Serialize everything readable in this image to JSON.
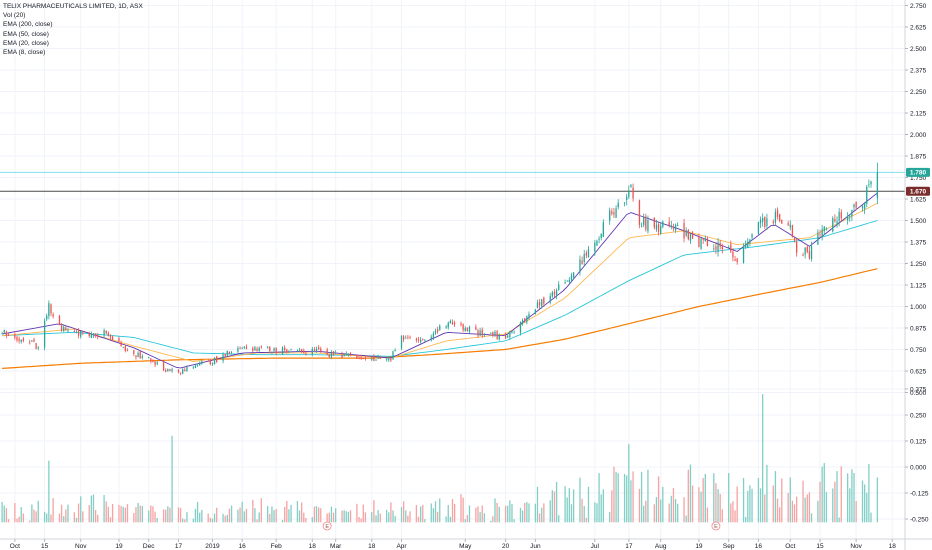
{
  "legend": {
    "title": "TELIX PHARMACEUTICALS LIMITED, 1D, ASX",
    "indicators": [
      "Vol (20)",
      "EMA (200, close)",
      "EMA (50, close)",
      "EMA (20, close)",
      "EMA (8, close)"
    ]
  },
  "colors": {
    "up": "#26a69a",
    "down": "#ef5350",
    "vol_up": "#83cfc6",
    "vol_down": "#f5a3a3",
    "ema200": "#f57c00",
    "ema50": "#26c6da",
    "ema20": "#ffb74d",
    "ema8": "#5e35b1",
    "hline_resistance": "#4a4a4a",
    "hline_last": "#80deea",
    "badge_last": "#26a69a",
    "badge_level": "#7b2d2d"
  },
  "chart_data": {
    "type": "candlestick",
    "symbol": "TELIX PHARMACEUTICALS LIMITED",
    "interval": "1D",
    "exchange": "ASX",
    "price_axis": {
      "ylim": [
        0.5,
        2.75
      ],
      "ticks": [
        "2.750",
        "2.625",
        "2.500",
        "2.375",
        "2.250",
        "2.125",
        "2.000",
        "1.875",
        "1.750",
        "1.625",
        "1.500",
        "1.375",
        "1.250",
        "1.125",
        "1.000",
        "0.875",
        "0.750",
        "0.625",
        "0.500"
      ]
    },
    "volume_axis": {
      "ticks": [
        "0.375",
        "0.250",
        "0.125",
        "0.000",
        "-0.125",
        "-0.250"
      ]
    },
    "price_labels": {
      "last": "1.780",
      "level": "1.670"
    },
    "horizontal_lines": [
      1.67,
      1.78
    ],
    "x_ticks": [
      {
        "label": "Oct",
        "date": "2018-10-01"
      },
      {
        "label": "15",
        "date": "2018-10-15"
      },
      {
        "label": "Nov",
        "date": "2018-11-01"
      },
      {
        "label": "19",
        "date": "2018-11-19"
      },
      {
        "label": "Dec",
        "date": "2018-12-03"
      },
      {
        "label": "17",
        "date": "2018-12-17"
      },
      {
        "label": "2019",
        "date": "2019-01-02"
      },
      {
        "label": "16",
        "date": "2019-01-16"
      },
      {
        "label": "Feb",
        "date": "2019-02-01"
      },
      {
        "label": "18",
        "date": "2019-02-18"
      },
      {
        "label": "Mar",
        "date": "2019-03-01"
      },
      {
        "label": "18",
        "date": "2019-03-18"
      },
      {
        "label": "Apr",
        "date": "2019-04-01"
      },
      {
        "label": "May",
        "date": "2019-05-01"
      },
      {
        "label": "20",
        "date": "2019-05-20"
      },
      {
        "label": "Jun",
        "date": "2019-06-03"
      },
      {
        "label": "Jul",
        "date": "2019-07-01"
      },
      {
        "label": "17",
        "date": "2019-07-17"
      },
      {
        "label": "Aug",
        "date": "2019-08-01"
      },
      {
        "label": "19",
        "date": "2019-08-19"
      },
      {
        "label": "Sep",
        "date": "2019-09-02"
      },
      {
        "label": "16",
        "date": "2019-09-16"
      },
      {
        "label": "Oct",
        "date": "2019-10-01"
      },
      {
        "label": "15",
        "date": "2019-10-15"
      },
      {
        "label": "Nov",
        "date": "2019-11-01"
      },
      {
        "label": "18",
        "date": "2019-11-18"
      }
    ],
    "event_markers": [
      {
        "label": "E",
        "date": "2019-02-25"
      },
      {
        "label": "E",
        "date": "2019-08-27"
      }
    ],
    "price_path": [
      [
        "2018-09-25",
        0.85
      ],
      [
        "2018-10-01",
        0.82
      ],
      [
        "2018-10-08",
        0.8
      ],
      [
        "2018-10-12",
        0.76
      ],
      [
        "2018-10-17",
        1.0
      ],
      [
        "2018-10-22",
        0.88
      ],
      [
        "2018-10-29",
        0.85
      ],
      [
        "2018-11-05",
        0.84
      ],
      [
        "2018-11-12",
        0.85
      ],
      [
        "2018-11-19",
        0.78
      ],
      [
        "2018-11-26",
        0.72
      ],
      [
        "2018-12-03",
        0.7
      ],
      [
        "2018-12-10",
        0.64
      ],
      [
        "2018-12-17",
        0.61
      ],
      [
        "2018-12-24",
        0.66
      ],
      [
        "2019-01-02",
        0.68
      ],
      [
        "2019-01-09",
        0.73
      ],
      [
        "2019-01-16",
        0.76
      ],
      [
        "2019-01-23",
        0.76
      ],
      [
        "2019-01-30",
        0.75
      ],
      [
        "2019-02-06",
        0.74
      ],
      [
        "2019-02-13",
        0.73
      ],
      [
        "2019-02-20",
        0.74
      ],
      [
        "2019-02-27",
        0.72
      ],
      [
        "2019-03-06",
        0.71
      ],
      [
        "2019-03-13",
        0.7
      ],
      [
        "2019-03-20",
        0.7
      ],
      [
        "2019-03-27",
        0.7
      ],
      [
        "2019-04-01",
        0.82
      ],
      [
        "2019-04-08",
        0.8
      ],
      [
        "2019-04-15",
        0.84
      ],
      [
        "2019-04-22",
        0.9
      ],
      [
        "2019-04-29",
        0.88
      ],
      [
        "2019-05-06",
        0.85
      ],
      [
        "2019-05-13",
        0.84
      ],
      [
        "2019-05-20",
        0.82
      ],
      [
        "2019-05-27",
        0.9
      ],
      [
        "2019-06-03",
        1.0
      ],
      [
        "2019-06-10",
        1.05
      ],
      [
        "2019-06-17",
        1.15
      ],
      [
        "2019-06-24",
        1.25
      ],
      [
        "2019-07-01",
        1.35
      ],
      [
        "2019-07-08",
        1.55
      ],
      [
        "2019-07-15",
        1.62
      ],
      [
        "2019-07-18",
        1.7
      ],
      [
        "2019-07-22",
        1.5
      ],
      [
        "2019-07-29",
        1.45
      ],
      [
        "2019-08-05",
        1.48
      ],
      [
        "2019-08-12",
        1.42
      ],
      [
        "2019-08-19",
        1.38
      ],
      [
        "2019-08-26",
        1.35
      ],
      [
        "2019-09-02",
        1.32
      ],
      [
        "2019-09-06",
        1.28
      ],
      [
        "2019-09-12",
        1.36
      ],
      [
        "2019-09-16",
        1.48
      ],
      [
        "2019-09-23",
        1.52
      ],
      [
        "2019-09-30",
        1.48
      ],
      [
        "2019-10-04",
        1.34
      ],
      [
        "2019-10-10",
        1.3
      ],
      [
        "2019-10-15",
        1.42
      ],
      [
        "2019-10-22",
        1.52
      ],
      [
        "2019-10-29",
        1.56
      ],
      [
        "2019-11-04",
        1.62
      ],
      [
        "2019-11-08",
        1.7
      ],
      [
        "2019-11-11",
        1.78
      ]
    ],
    "ema_paths": {
      "EMA (200, close)": [
        [
          "2018-09-25",
          0.64
        ],
        [
          "2018-11-01",
          0.67
        ],
        [
          "2018-12-17",
          0.69
        ],
        [
          "2019-02-01",
          0.7
        ],
        [
          "2019-03-18",
          0.7
        ],
        [
          "2019-04-15",
          0.72
        ],
        [
          "2019-05-20",
          0.75
        ],
        [
          "2019-06-17",
          0.81
        ],
        [
          "2019-07-17",
          0.9
        ],
        [
          "2019-08-19",
          1.0
        ],
        [
          "2019-09-16",
          1.07
        ],
        [
          "2019-10-15",
          1.14
        ],
        [
          "2019-11-11",
          1.22
        ]
      ],
      "EMA (50, close)": [
        [
          "2018-09-25",
          0.83
        ],
        [
          "2018-10-29",
          0.85
        ],
        [
          "2018-11-26",
          0.82
        ],
        [
          "2018-12-24",
          0.73
        ],
        [
          "2019-01-23",
          0.72
        ],
        [
          "2019-02-20",
          0.72
        ],
        [
          "2019-03-27",
          0.71
        ],
        [
          "2019-04-22",
          0.75
        ],
        [
          "2019-05-20",
          0.8
        ],
        [
          "2019-06-17",
          0.95
        ],
        [
          "2019-07-17",
          1.15
        ],
        [
          "2019-08-12",
          1.3
        ],
        [
          "2019-09-16",
          1.35
        ],
        [
          "2019-10-15",
          1.4
        ],
        [
          "2019-11-11",
          1.5
        ]
      ],
      "EMA (20, close)": [
        [
          "2018-09-25",
          0.83
        ],
        [
          "2018-10-29",
          0.87
        ],
        [
          "2018-11-26",
          0.77
        ],
        [
          "2018-12-24",
          0.68
        ],
        [
          "2019-01-23",
          0.73
        ],
        [
          "2019-02-20",
          0.73
        ],
        [
          "2019-03-27",
          0.7
        ],
        [
          "2019-04-22",
          0.8
        ],
        [
          "2019-05-20",
          0.84
        ],
        [
          "2019-06-17",
          1.05
        ],
        [
          "2019-07-17",
          1.4
        ],
        [
          "2019-08-12",
          1.44
        ],
        [
          "2019-09-06",
          1.36
        ],
        [
          "2019-10-10",
          1.4
        ],
        [
          "2019-11-11",
          1.6
        ]
      ],
      "EMA (8, close)": [
        [
          "2018-09-25",
          0.84
        ],
        [
          "2018-10-22",
          0.9
        ],
        [
          "2018-11-26",
          0.76
        ],
        [
          "2018-12-17",
          0.64
        ],
        [
          "2019-01-16",
          0.73
        ],
        [
          "2019-02-20",
          0.74
        ],
        [
          "2019-03-27",
          0.7
        ],
        [
          "2019-04-22",
          0.85
        ],
        [
          "2019-05-20",
          0.83
        ],
        [
          "2019-06-17",
          1.1
        ],
        [
          "2019-07-17",
          1.55
        ],
        [
          "2019-08-12",
          1.44
        ],
        [
          "2019-09-06",
          1.32
        ],
        [
          "2019-09-23",
          1.48
        ],
        [
          "2019-10-10",
          1.35
        ],
        [
          "2019-11-11",
          1.66
        ]
      ]
    },
    "volume_spikes": [
      [
        "2018-10-17",
        0.3
      ],
      [
        "2018-12-14",
        0.42
      ],
      [
        "2019-07-12",
        0.24
      ],
      [
        "2019-07-17",
        0.38
      ],
      [
        "2019-09-18",
        0.62
      ],
      [
        "2019-09-20",
        0.28
      ],
      [
        "2019-10-01",
        0.22
      ],
      [
        "2019-11-11",
        0.22
      ]
    ],
    "grid": true,
    "legend_position": "top-left"
  }
}
